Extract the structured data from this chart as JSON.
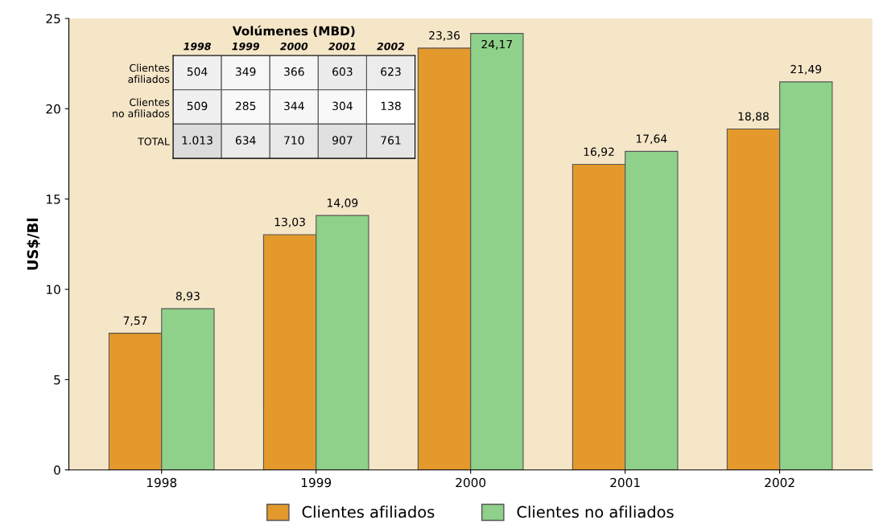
{
  "chart_data": [
    {
      "type": "bar",
      "ylabel": "US$/Bl",
      "categories": [
        "1998",
        "1999",
        "2000",
        "2001",
        "2002"
      ],
      "ylim": [
        0,
        25
      ],
      "yticks": [
        0,
        5,
        10,
        15,
        20,
        25
      ],
      "grid": false,
      "legend": "bottom",
      "series": [
        {
          "name": "Clientes afiliados",
          "color": "#e3992b",
          "values": [
            7.57,
            13.03,
            23.36,
            16.92,
            18.88
          ],
          "value_labels": [
            "7,57",
            "13,03",
            "23,36",
            "16,92",
            "18,88"
          ]
        },
        {
          "name": "Clientes no afiliados",
          "color": "#8fd08a",
          "values": [
            8.93,
            14.09,
            24.17,
            17.64,
            21.49
          ],
          "value_labels": [
            "8,93",
            "14,09",
            "24,17",
            "17,64",
            "21,49"
          ]
        }
      ]
    },
    {
      "type": "heatmap",
      "title": "Volúmenes (MBD)",
      "categories": [
        "1998",
        "1999",
        "2000",
        "2001",
        "2002"
      ],
      "y_categories": [
        "Clientes\nafiliados",
        "Clientes\nno afiliados",
        "TOTAL"
      ],
      "cells": [
        [
          504,
          349,
          366,
          603,
          623
        ],
        [
          509,
          285,
          344,
          304,
          138
        ],
        [
          1013,
          634,
          710,
          907,
          761
        ]
      ],
      "cell_labels": [
        [
          "504",
          "349",
          "366",
          "603",
          "623"
        ],
        [
          "509",
          "285",
          "344",
          "304",
          "138"
        ],
        [
          "1.013",
          "634",
          "710",
          "907",
          "761"
        ]
      ]
    }
  ]
}
